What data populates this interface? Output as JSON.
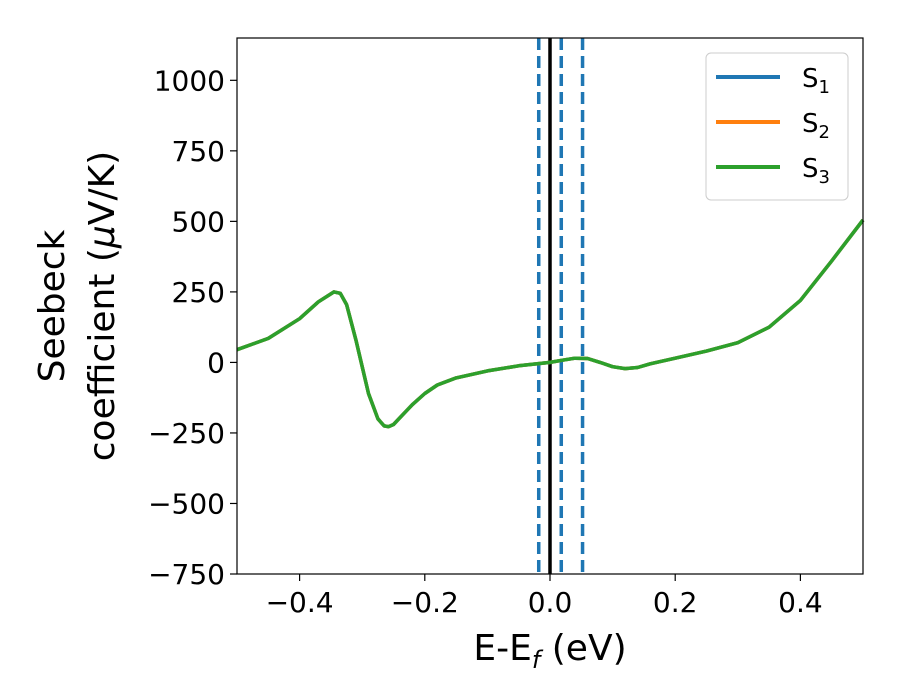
{
  "chart_data": {
    "type": "line",
    "xlabel": {
      "main": "E-E",
      "sub": "f",
      "unit": " (eV)"
    },
    "ylabel": {
      "line1": "Seebeck",
      "line2": "coefficient  (",
      "mu": "μ",
      "line2_end": "V/K)"
    },
    "xlim": [
      -0.5,
      0.5
    ],
    "ylim": [
      -750,
      1150
    ],
    "xticks": [
      -0.4,
      -0.2,
      0.0,
      0.2,
      0.4
    ],
    "xtick_labels": [
      "−0.4",
      "−0.2",
      "0.0",
      "0.2",
      "0.4"
    ],
    "yticks": [
      -750,
      -500,
      -250,
      0,
      250,
      500,
      750,
      1000
    ],
    "ytick_labels": [
      "−750",
      "−500",
      "−250",
      "0",
      "250",
      "500",
      "750",
      "1000"
    ],
    "grid": false,
    "legend_position": "top-right",
    "x": [
      -0.5,
      -0.45,
      -0.4,
      -0.37,
      -0.345,
      -0.335,
      -0.325,
      -0.31,
      -0.29,
      -0.275,
      -0.265,
      -0.258,
      -0.25,
      -0.235,
      -0.22,
      -0.2,
      -0.18,
      -0.15,
      -0.1,
      -0.05,
      0.0,
      0.02,
      0.04,
      0.06,
      0.08,
      0.1,
      0.12,
      0.14,
      0.16,
      0.2,
      0.25,
      0.3,
      0.35,
      0.4,
      0.45,
      0.5
    ],
    "series": [
      {
        "name": "S",
        "sub": "1",
        "color": "#1f77b4",
        "values": [
          45,
          85,
          155,
          215,
          250,
          245,
          205,
          80,
          -110,
          -200,
          -225,
          -228,
          -220,
          -185,
          -150,
          -110,
          -80,
          -55,
          -30,
          -12,
          0,
          8,
          15,
          14,
          0,
          -15,
          -22,
          -18,
          -5,
          15,
          40,
          70,
          125,
          220,
          360,
          505
        ]
      },
      {
        "name": "S",
        "sub": "2",
        "color": "#ff7f0e",
        "values": [
          45,
          85,
          155,
          215,
          250,
          245,
          205,
          80,
          -110,
          -200,
          -225,
          -228,
          -220,
          -185,
          -150,
          -110,
          -80,
          -55,
          -30,
          -12,
          0,
          8,
          15,
          14,
          0,
          -15,
          -22,
          -18,
          -5,
          15,
          40,
          70,
          125,
          220,
          360,
          505
        ]
      },
      {
        "name": "S",
        "sub": "3",
        "color": "#2ca02c",
        "values": [
          45,
          85,
          155,
          215,
          250,
          245,
          205,
          80,
          -110,
          -200,
          -225,
          -228,
          -220,
          -185,
          -150,
          -110,
          -80,
          -55,
          -30,
          -12,
          0,
          8,
          15,
          14,
          0,
          -15,
          -22,
          -18,
          -5,
          15,
          40,
          70,
          125,
          220,
          360,
          505
        ]
      }
    ],
    "vlines": [
      {
        "x": 0.0,
        "style": "solid",
        "color": "#000000"
      },
      {
        "x": -0.018,
        "style": "dashed",
        "color": "#1f77b4"
      },
      {
        "x": 0.018,
        "style": "dashed",
        "color": "#1f77b4"
      },
      {
        "x": 0.052,
        "style": "dashed",
        "color": "#1f77b4"
      }
    ]
  }
}
